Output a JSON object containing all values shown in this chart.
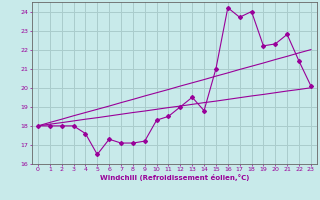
{
  "xlabel": "Windchill (Refroidissement éolien,°C)",
  "bg_color": "#c8eaea",
  "line_color": "#990099",
  "grid_color": "#aacccc",
  "x_data": [
    0,
    1,
    2,
    3,
    4,
    5,
    6,
    7,
    8,
    9,
    10,
    11,
    12,
    13,
    14,
    15,
    16,
    17,
    18,
    19,
    20,
    21,
    22,
    23
  ],
  "y_main": [
    18.0,
    18.0,
    18.0,
    18.0,
    17.6,
    16.5,
    17.3,
    17.1,
    17.1,
    17.2,
    18.3,
    18.5,
    19.0,
    19.5,
    18.8,
    21.0,
    24.2,
    23.7,
    24.0,
    22.2,
    22.3,
    22.8,
    21.4,
    20.1
  ],
  "y_trend1": [
    18.0,
    18.09,
    18.17,
    18.26,
    18.35,
    18.43,
    18.52,
    18.61,
    18.7,
    18.78,
    18.87,
    18.96,
    19.04,
    19.13,
    19.22,
    19.3,
    19.39,
    19.48,
    19.57,
    19.65,
    19.74,
    19.83,
    19.91,
    20.0
  ],
  "y_trend2": [
    18.0,
    18.18,
    18.35,
    18.53,
    18.7,
    18.87,
    19.04,
    19.22,
    19.39,
    19.57,
    19.74,
    19.91,
    20.09,
    20.26,
    20.43,
    20.61,
    20.78,
    20.96,
    21.13,
    21.3,
    21.48,
    21.65,
    21.83,
    22.0
  ],
  "ylim": [
    16,
    24.5
  ],
  "xlim": [
    -0.5,
    23.5
  ],
  "yticks": [
    16,
    17,
    18,
    19,
    20,
    21,
    22,
    23,
    24
  ],
  "xticks": [
    0,
    1,
    2,
    3,
    4,
    5,
    6,
    7,
    8,
    9,
    10,
    11,
    12,
    13,
    14,
    15,
    16,
    17,
    18,
    19,
    20,
    21,
    22,
    23
  ]
}
